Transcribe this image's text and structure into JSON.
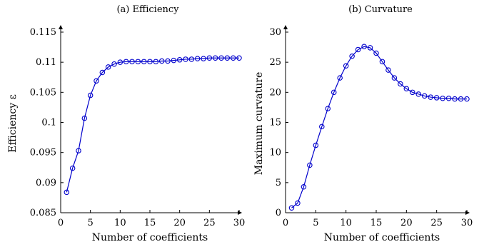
{
  "chart_data": [
    {
      "type": "line",
      "title": "(a) Efficiency",
      "xlabel": "Number of coefficients",
      "ylabel": "Efficiency ε",
      "xlim": [
        0,
        30
      ],
      "ylim": [
        0.085,
        0.115
      ],
      "xticks": [
        0,
        5,
        10,
        15,
        20,
        25,
        30
      ],
      "xtick_labels": [
        "0",
        "5",
        "10",
        "15",
        "20",
        "25",
        "30"
      ],
      "yticks": [
        0.085,
        0.09,
        0.095,
        0.1,
        0.105,
        0.11,
        0.115
      ],
      "ytick_labels": [
        "0.085",
        "0.09",
        "0.095",
        "0.1",
        "0.105",
        "0.11",
        "0.115"
      ],
      "grid": false,
      "color": "#0000cc",
      "series": [
        {
          "x": [
            1,
            2,
            3,
            4,
            5,
            6,
            7,
            8,
            9,
            10,
            11,
            12,
            13,
            14,
            15,
            16,
            17,
            18,
            19,
            20,
            21,
            22,
            23,
            24,
            25,
            26,
            27,
            28,
            29,
            30
          ],
          "values": [
            0.0884,
            0.0924,
            0.0953,
            0.1007,
            0.1045,
            0.1069,
            0.1083,
            0.1092,
            0.1097,
            0.11,
            0.1101,
            0.1101,
            0.1101,
            0.1101,
            0.1101,
            0.1101,
            0.1102,
            0.1102,
            0.1103,
            0.1104,
            0.1105,
            0.1105,
            0.1106,
            0.1106,
            0.1107,
            0.1107,
            0.1107,
            0.1107,
            0.1107,
            0.1107
          ]
        }
      ]
    },
    {
      "type": "line",
      "title": "(b) Curvature",
      "xlabel": "Number of coefficients",
      "ylabel": "Maximum curvature",
      "xlim": [
        0,
        30
      ],
      "ylim": [
        0,
        30
      ],
      "xticks": [
        0,
        5,
        10,
        15,
        20,
        25,
        30
      ],
      "xtick_labels": [
        "0",
        "5",
        "10",
        "15",
        "20",
        "25",
        "30"
      ],
      "yticks": [
        0,
        5,
        10,
        15,
        20,
        25,
        30
      ],
      "ytick_labels": [
        "0",
        "5",
        "10",
        "15",
        "20",
        "25",
        "30"
      ],
      "grid": false,
      "color": "#0000cc",
      "series": [
        {
          "x": [
            1,
            2,
            3,
            4,
            5,
            6,
            7,
            8,
            9,
            10,
            11,
            12,
            13,
            14,
            15,
            16,
            17,
            18,
            19,
            20,
            21,
            22,
            23,
            24,
            25,
            26,
            27,
            28,
            29,
            30
          ],
          "values": [
            0.8,
            1.6,
            4.3,
            7.9,
            11.2,
            14.3,
            17.3,
            20.0,
            22.4,
            24.4,
            26.0,
            27.1,
            27.6,
            27.4,
            26.5,
            25.1,
            23.7,
            22.4,
            21.4,
            20.6,
            20.0,
            19.7,
            19.4,
            19.2,
            19.1,
            19.0,
            19.0,
            18.9,
            18.9,
            18.9
          ]
        }
      ]
    }
  ]
}
